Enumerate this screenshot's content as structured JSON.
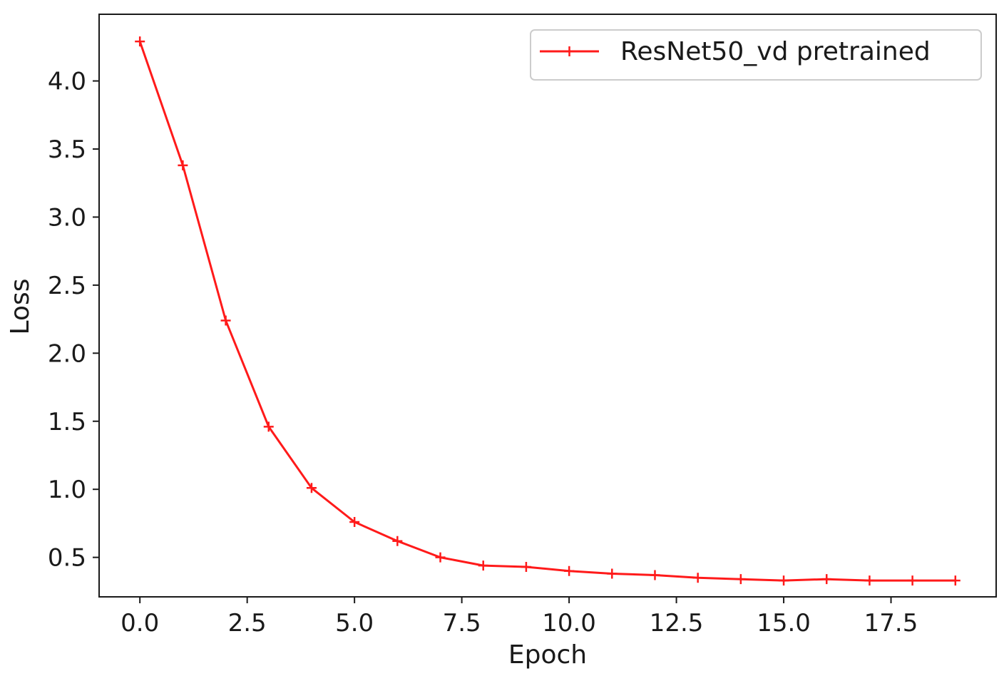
{
  "chart_data": {
    "type": "line",
    "title": "",
    "xlabel": "Epoch",
    "ylabel": "Loss",
    "xlim": [
      -0.95,
      19.95
    ],
    "ylim": [
      0.21,
      4.49
    ],
    "xticks": [
      0.0,
      2.5,
      5.0,
      7.5,
      10.0,
      12.5,
      15.0,
      17.5
    ],
    "xtick_labels": [
      "0.0",
      "2.5",
      "5.0",
      "7.5",
      "10.0",
      "12.5",
      "15.0",
      "17.5"
    ],
    "yticks": [
      0.5,
      1.0,
      1.5,
      2.0,
      2.5,
      3.0,
      3.5,
      4.0
    ],
    "ytick_labels": [
      "0.5",
      "1.0",
      "1.5",
      "2.0",
      "2.5",
      "3.0",
      "3.5",
      "4.0"
    ],
    "grid": false,
    "legend_position": "top-right",
    "series": [
      {
        "name": "ResNet50_vd pretrained",
        "color": "#ff1a1a",
        "marker": "plus",
        "x": [
          0,
          1,
          2,
          3,
          4,
          5,
          6,
          7,
          8,
          9,
          10,
          11,
          12,
          13,
          14,
          15,
          16,
          17,
          18,
          19
        ],
        "y": [
          4.29,
          3.38,
          2.24,
          1.46,
          1.01,
          0.76,
          0.62,
          0.5,
          0.44,
          0.43,
          0.4,
          0.38,
          0.37,
          0.35,
          0.34,
          0.33,
          0.34,
          0.33,
          0.33,
          0.33
        ]
      }
    ]
  }
}
